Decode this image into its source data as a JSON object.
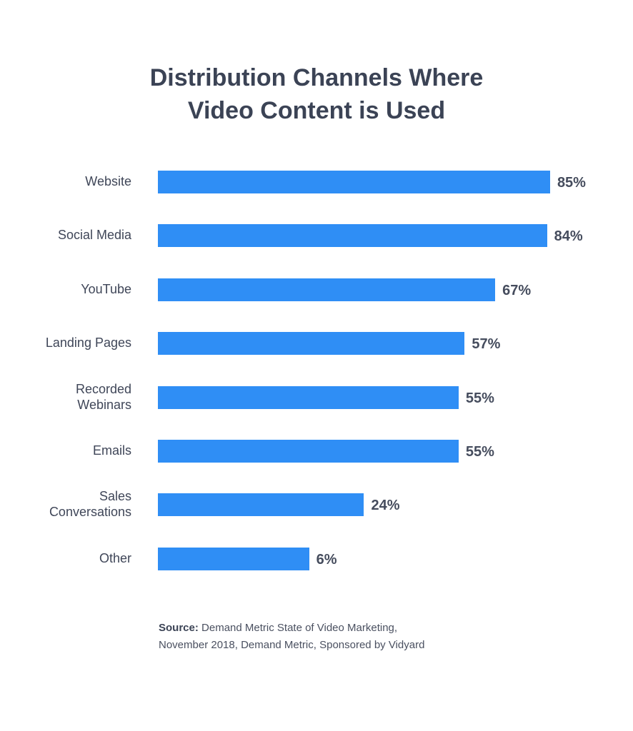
{
  "chart_data": {
    "type": "bar",
    "orientation": "horizontal",
    "title": "Distribution Channels Where Video Content is Used",
    "categories": [
      "Website",
      "Social Media",
      "YouTube",
      "Landing Pages",
      "Recorded Webinars",
      "Emails",
      "Sales Conversations",
      "Other"
    ],
    "values": [
      85,
      84,
      67,
      57,
      55,
      55,
      24,
      6
    ],
    "value_labels": [
      "85%",
      "84%",
      "67%",
      "57%",
      "55%",
      "55%",
      "24%",
      "6%"
    ],
    "unit": "%",
    "grid": false,
    "bar_color": "#2f8ef5"
  },
  "source": {
    "label": "Source:",
    "text_line1": "Demand Metric State of Video Marketing,",
    "text_line2": "November 2018, Demand Metric, Sponsored by Vidyard"
  }
}
